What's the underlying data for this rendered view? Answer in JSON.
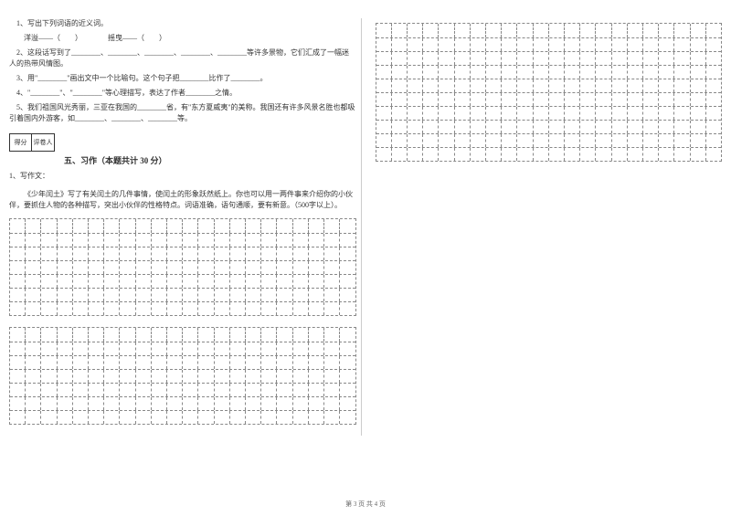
{
  "questions": {
    "q1": {
      "text": "1、写出下列词语的近义词。",
      "sub": "洋溢——（　　）　　　　摇曳——（　　）"
    },
    "q2": "2、这段话写到了________、________、________、________、________等许多景物，它们汇成了一幅迷人的热带风情图。",
    "q3": "3、用\"________\"画出文中一个比喻句。这个句子把________比作了________。",
    "q4": "4、\"________\"、\"________\"等心理描写，表达了作者________之情。",
    "q5": "5、我们祖国风光秀丽，三亚在我国的________省，有\"东方夏威夷\"的美称。我国还有许多风景名胜也都吸引着国内外游客，如________、________、________等。"
  },
  "scoreLabels": {
    "left": "得分",
    "right": "评卷人"
  },
  "section": {
    "title": "五、习作（本题共计 30 分）"
  },
  "essay": {
    "label": "1、写作文：",
    "prompt": "《少年闰土》写了有关闰土的几件事情，使闰土的形象跃然纸上。你也可以用一两件事来介绍你的小伙伴，要抓住人物的各种描写，突出小伙伴的性格特点。词语准确，语句通顺，要有新意。（500字以上）。"
  },
  "footer": "第 3 页 共 4 页",
  "gridConfig": {
    "leftBlock1Rows": 7,
    "leftBlock2Rows": 7,
    "leftCols": 22,
    "rightBlockRows": 10,
    "rightCols": 22
  }
}
